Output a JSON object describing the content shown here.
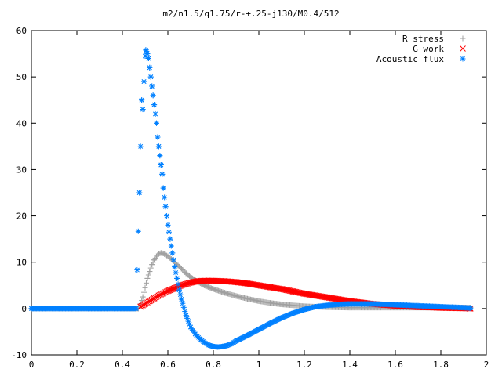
{
  "chart_data": {
    "type": "scatter",
    "title": "m2/n1.5/q1.75/r-+.25-j130/M0.4/512",
    "xlabel": "",
    "ylabel": "",
    "xlim": [
      0,
      2
    ],
    "ylim": [
      -10,
      60
    ],
    "xticks": [
      0,
      0.2,
      0.4,
      0.6,
      0.8,
      1,
      1.2,
      1.4,
      1.6,
      1.8,
      2
    ],
    "xtick_labels": [
      "0",
      "0.2",
      "0.4",
      "0.6",
      "0.8",
      "1",
      "1.2",
      "1.4",
      "1.6",
      "1.8",
      "2"
    ],
    "yticks": [
      -10,
      0,
      10,
      20,
      30,
      40,
      50,
      60
    ],
    "ytick_labels": [
      "-10",
      "0",
      "10",
      "20",
      "30",
      "40",
      "50",
      "60"
    ],
    "grid": false,
    "legend_position": "top-right",
    "series": [
      {
        "name": "R stress",
        "marker": "plus",
        "color": "#a0a0a0",
        "x": [
          0.0,
          0.1,
          0.2,
          0.3,
          0.4,
          0.47,
          0.48,
          0.49,
          0.5,
          0.51,
          0.52,
          0.53,
          0.54,
          0.55,
          0.56,
          0.57,
          0.58,
          0.6,
          0.62,
          0.64,
          0.66,
          0.68,
          0.7,
          0.73,
          0.76,
          0.8,
          0.85,
          0.9,
          0.95,
          1.0,
          1.05,
          1.1,
          1.2,
          1.3,
          1.4,
          1.5,
          1.6,
          1.7,
          1.8,
          1.9,
          1.93
        ],
        "y": [
          0,
          0,
          0,
          0,
          0,
          0,
          1.0,
          2.5,
          4.5,
          6.5,
          8.0,
          9.5,
          10.5,
          11.3,
          11.8,
          12.0,
          11.9,
          11.3,
          10.5,
          9.5,
          8.6,
          7.6,
          6.8,
          5.8,
          5.0,
          4.2,
          3.4,
          2.7,
          2.1,
          1.6,
          1.2,
          0.9,
          0.5,
          0.3,
          0.2,
          0.2,
          0.2,
          0.2,
          0.2,
          0.2,
          0.2
        ]
      },
      {
        "name": "G work",
        "marker": "cross",
        "color": "#ff0000",
        "x": [
          0.48,
          0.5,
          0.52,
          0.54,
          0.56,
          0.58,
          0.6,
          0.63,
          0.66,
          0.7,
          0.73,
          0.76,
          0.8,
          0.85,
          0.9,
          0.95,
          1.0,
          1.05,
          1.1,
          1.15,
          1.2,
          1.25,
          1.3,
          1.35,
          1.4,
          1.45,
          1.5,
          1.55,
          1.6,
          1.65,
          1.7,
          1.75,
          1.8,
          1.85,
          1.9,
          1.93
        ],
        "y": [
          0.4,
          1.0,
          1.6,
          2.2,
          2.8,
          3.3,
          3.8,
          4.4,
          5.0,
          5.6,
          5.9,
          6.0,
          6.0,
          5.9,
          5.7,
          5.4,
          5.0,
          4.6,
          4.2,
          3.7,
          3.2,
          2.8,
          2.4,
          2.0,
          1.6,
          1.3,
          1.0,
          0.8,
          0.6,
          0.45,
          0.3,
          0.25,
          0.15,
          0.1,
          0.05,
          0.0
        ]
      },
      {
        "name": "Acoustic flux",
        "marker": "star",
        "color": "#0080ff",
        "x": [
          0.0,
          0.1,
          0.2,
          0.3,
          0.4,
          0.46,
          0.475,
          0.485,
          0.49,
          0.495,
          0.5,
          0.503,
          0.506,
          0.51,
          0.515,
          0.52,
          0.525,
          0.53,
          0.535,
          0.54,
          0.545,
          0.55,
          0.555,
          0.56,
          0.565,
          0.57,
          0.575,
          0.58,
          0.59,
          0.6,
          0.61,
          0.62,
          0.63,
          0.64,
          0.65,
          0.66,
          0.68,
          0.7,
          0.72,
          0.74,
          0.76,
          0.78,
          0.8,
          0.82,
          0.84,
          0.86,
          0.88,
          0.9,
          0.95,
          1.0,
          1.05,
          1.1,
          1.15,
          1.2,
          1.25,
          1.3,
          1.35,
          1.4,
          1.45,
          1.5,
          1.55,
          1.6,
          1.65,
          1.7,
          1.75,
          1.8,
          1.85,
          1.9,
          1.93
        ],
        "y": [
          0,
          0,
          0,
          0,
          0,
          0,
          25.0,
          45.0,
          43.0,
          49.0,
          54.5,
          55.8,
          55.5,
          55.0,
          54.0,
          52.0,
          50.0,
          48.0,
          46.0,
          44.0,
          42.0,
          40.0,
          37.0,
          35.0,
          33.0,
          31.0,
          29.0,
          26.0,
          22.0,
          18.0,
          15.0,
          12.0,
          9.0,
          6.5,
          4.0,
          2.0,
          -1.5,
          -4.0,
          -5.5,
          -6.5,
          -7.3,
          -7.9,
          -8.2,
          -8.3,
          -8.2,
          -8.0,
          -7.6,
          -7.0,
          -5.8,
          -4.5,
          -3.2,
          -2.0,
          -1.0,
          -0.2,
          0.4,
          0.7,
          0.9,
          1.0,
          1.0,
          1.0,
          0.9,
          0.8,
          0.7,
          0.6,
          0.5,
          0.4,
          0.3,
          0.2,
          0.1
        ]
      }
    ]
  }
}
